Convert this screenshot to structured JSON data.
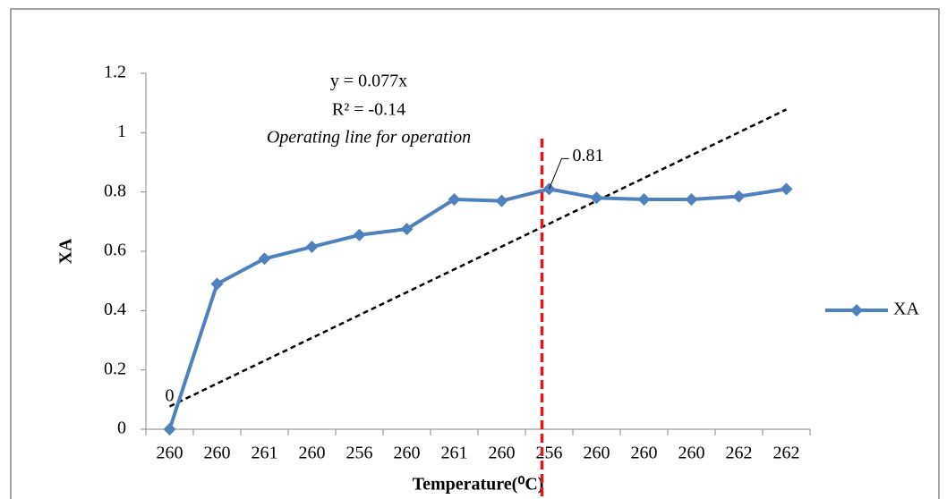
{
  "chart_data": {
    "type": "line",
    "x_label": "Temperature(⁰C)",
    "y_label": "XA",
    "categories": [
      "260",
      "260",
      "261",
      "260",
      "256",
      "260",
      "261",
      "260",
      "256",
      "260",
      "260",
      "260",
      "262",
      "262"
    ],
    "series": [
      {
        "name": "XA",
        "color": "#4f81bd",
        "values": [
          0,
          0.49,
          0.575,
          0.615,
          0.655,
          0.675,
          0.775,
          0.77,
          0.81,
          0.78,
          0.775,
          0.775,
          0.785,
          0.81
        ]
      }
    ],
    "labeled_points": [
      0,
      8
    ],
    "trendline": {
      "equation": "y = 0.077x",
      "r_squared": "R² = -0.14",
      "label": "Operating line for operation",
      "start": 0.077,
      "end": 1.078,
      "color": "#000000"
    },
    "vertical_line": {
      "category_index": 8,
      "color": "#e8141b"
    },
    "ylim": [
      0,
      1.2
    ],
    "yticks": [
      0,
      0.2,
      0.4,
      0.6,
      0.8,
      1,
      1.2
    ],
    "grid": false,
    "legend": "right"
  }
}
